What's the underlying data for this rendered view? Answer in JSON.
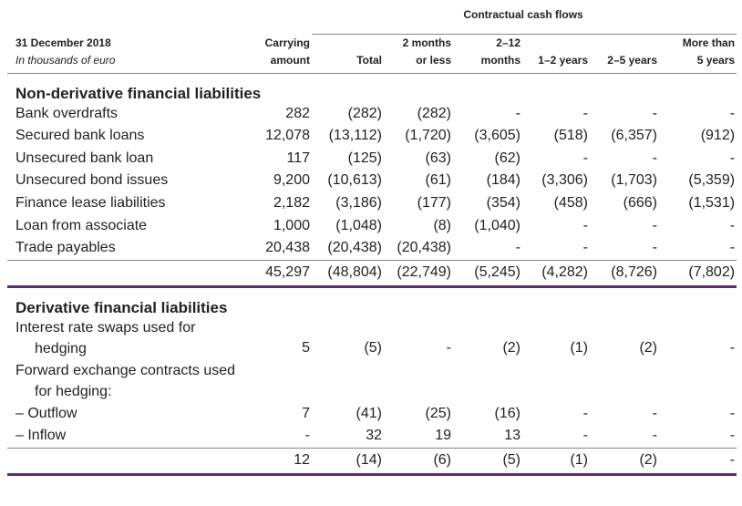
{
  "header": {
    "group": "Contractual cash flows",
    "date": "31 December 2018",
    "units": "In thousands of euro",
    "columns": [
      [
        "Carrying",
        "amount"
      ],
      [
        "Total"
      ],
      [
        "2 months",
        "or less"
      ],
      [
        "2–12",
        "months"
      ],
      [
        "1–2 years"
      ],
      [
        "2–5 years"
      ],
      [
        "More than",
        "5 years"
      ]
    ]
  },
  "sections": [
    {
      "title": "Non-derivative financial liabilities",
      "rows": [
        {
          "label": "Bank overdrafts",
          "values": [
            "282",
            "(282)",
            "(282)",
            "-",
            "-",
            "-",
            "-"
          ]
        },
        {
          "label": "Secured bank loans",
          "values": [
            "12,078",
            "(13,112)",
            "(1,720)",
            "(3,605)",
            "(518)",
            "(6,357)",
            "(912)"
          ]
        },
        {
          "label": "Unsecured bank loan",
          "values": [
            "117",
            "(125)",
            "(63)",
            "(62)",
            "-",
            "-",
            "-"
          ]
        },
        {
          "label": "Unsecured bond issues",
          "values": [
            "9,200",
            "(10,613)",
            "(61)",
            "(184)",
            "(3,306)",
            "(1,703)",
            "(5,359)"
          ]
        },
        {
          "label": "Finance lease liabilities",
          "values": [
            "2,182",
            "(3,186)",
            "(177)",
            "(354)",
            "(458)",
            "(666)",
            "(1,531)"
          ]
        },
        {
          "label": "Loan from associate",
          "values": [
            "1,000",
            "(1,048)",
            "(8)",
            "(1,040)",
            "-",
            "-",
            "-"
          ]
        },
        {
          "label": "Trade payables",
          "values": [
            "20,438",
            "(20,438)",
            "(20,438)",
            "-",
            "-",
            "-",
            "-"
          ]
        }
      ],
      "total": [
        "45,297",
        "(48,804)",
        "(22,749)",
        "(5,245)",
        "(4,282)",
        "(8,726)",
        "(7,802)"
      ]
    },
    {
      "title": "Derivative financial liabilities",
      "rows": [
        {
          "label": "Interest rate swaps used for hedging",
          "values": [
            "5",
            "(5)",
            "-",
            "(2)",
            "(1)",
            "(2)",
            "-"
          ]
        },
        {
          "label": "Forward exchange contracts used for hedging:"
        },
        {
          "label": "– Outflow",
          "values": [
            "7",
            "(41)",
            "(25)",
            "(16)",
            "-",
            "-",
            "-"
          ]
        },
        {
          "label": "– Inflow",
          "values": [
            "-",
            "32",
            "19",
            "13",
            "-",
            "-",
            "-"
          ]
        }
      ],
      "total": [
        "12",
        "(14)",
        "(6)",
        "(5)",
        "(1)",
        "(2)",
        "-"
      ]
    }
  ]
}
